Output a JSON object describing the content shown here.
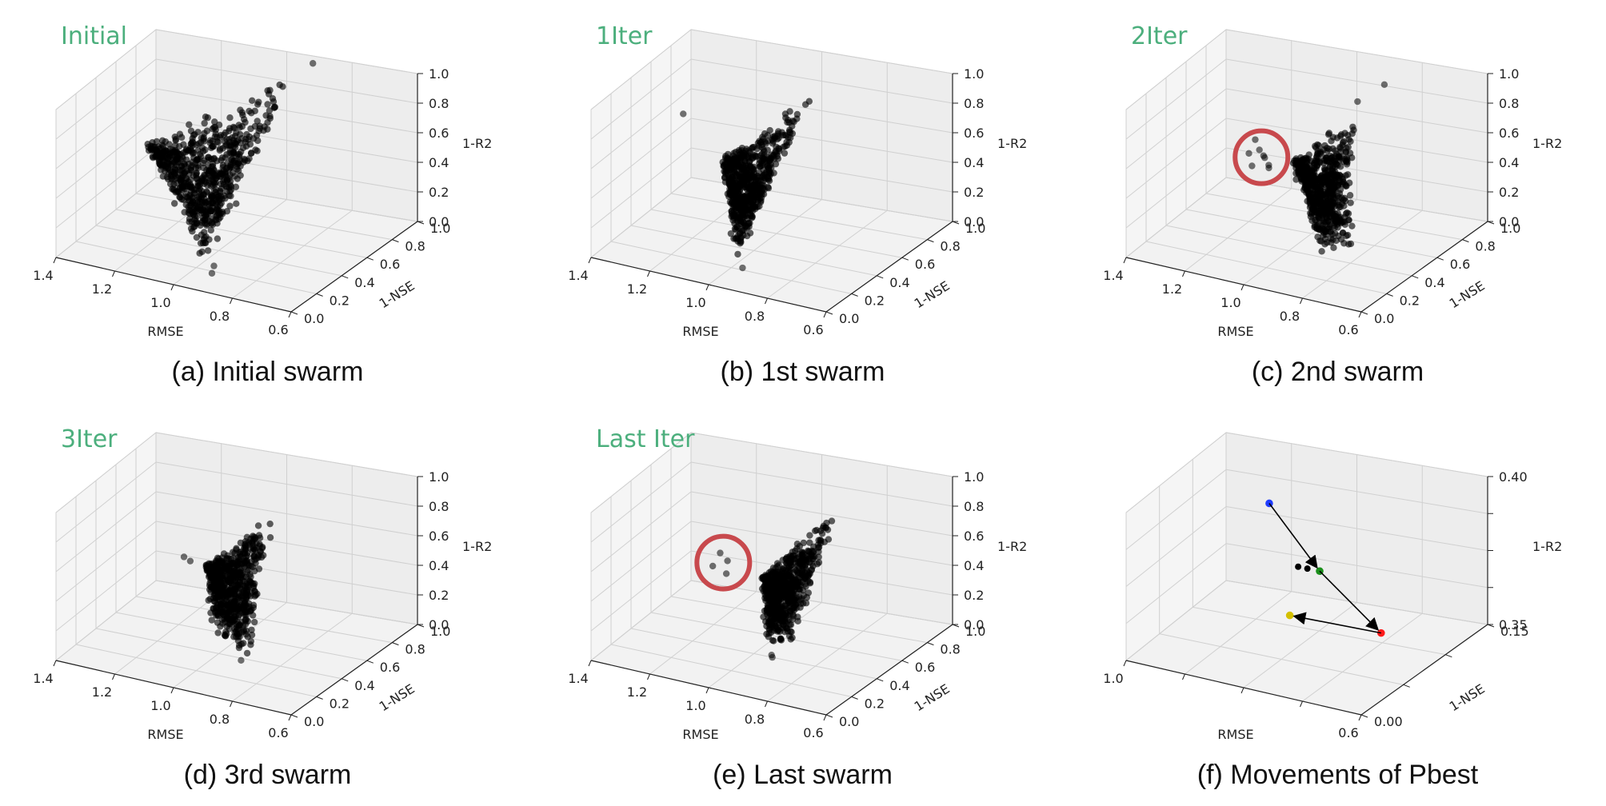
{
  "chart_data": [
    {
      "type": "scatter",
      "panel_label": "Initial",
      "caption": "(a) Initial swarm",
      "xlabel": "RMSE",
      "ylabel": "1-NSE",
      "zlabel": "1-R2",
      "xticks": [
        "1.4",
        "1.2",
        "1.0",
        "0.8",
        "0.6"
      ],
      "yticks": [
        "0.0",
        "0.2",
        "0.4",
        "0.6",
        "0.8",
        "1.0"
      ],
      "zticks": [
        "0.0",
        "0.2",
        "0.4",
        "0.6",
        "0.8",
        "1.0"
      ],
      "xlim": [
        0.6,
        1.4
      ],
      "ylim": [
        0.0,
        1.0
      ],
      "zlim": [
        0.0,
        1.0
      ],
      "grid": true,
      "cloud": {
        "apex": [
          1.3,
          0.6,
          0.47
        ],
        "vertices": [
          [
            0.96,
            1.0,
            0.9
          ],
          [
            0.97,
            0.2,
            0.0
          ],
          [
            1.08,
            0.5,
            0.12
          ]
        ],
        "count": 700
      },
      "points": [
        {
          "x": 0.92,
          "y": 1.0,
          "z": 0.95
        },
        {
          "x": 0.96,
          "y": 0.25,
          "z": 0.0
        },
        {
          "x": 0.94,
          "y": 0.18,
          "z": 0.0
        }
      ],
      "circle": null
    },
    {
      "type": "scatter",
      "panel_label": "1Iter",
      "caption": "(b) 1st swarm",
      "xlabel": "RMSE",
      "ylabel": "1-NSE",
      "zlabel": "1-R2",
      "xticks": [
        "1.4",
        "1.2",
        "1.0",
        "0.8",
        "0.6"
      ],
      "yticks": [
        "0.0",
        "0.2",
        "0.4",
        "0.6",
        "0.8",
        "1.0"
      ],
      "zticks": [
        "0.0",
        "0.2",
        "0.4",
        "0.6",
        "0.8",
        "1.0"
      ],
      "xlim": [
        0.6,
        1.4
      ],
      "ylim": [
        0.0,
        1.0
      ],
      "zlim": [
        0.0,
        1.0
      ],
      "grid": true,
      "cloud": {
        "apex": [
          1.17,
          0.6,
          0.44
        ],
        "vertices": [
          [
            0.98,
            0.85,
            0.8
          ],
          [
            0.99,
            0.2,
            0.02
          ],
          [
            1.06,
            0.45,
            0.1
          ]
        ],
        "count": 650
      },
      "points": [
        {
          "x": 1.33,
          "y": 0.7,
          "z": 0.62
        },
        {
          "x": 0.97,
          "y": 0.22,
          "z": 0.0
        }
      ],
      "circle": null
    },
    {
      "type": "scatter",
      "panel_label": "2Iter",
      "caption": "(c) 2nd swarm",
      "xlabel": "RMSE",
      "ylabel": "1-NSE",
      "zlabel": "1-R2",
      "xticks": [
        "1.4",
        "1.2",
        "1.0",
        "0.8",
        "0.6"
      ],
      "yticks": [
        "0.0",
        "0.2",
        "0.4",
        "0.6",
        "0.8",
        "1.0"
      ],
      "zticks": [
        "0.0",
        "0.2",
        "0.4",
        "0.6",
        "0.8",
        "1.0"
      ],
      "xlim": [
        0.6,
        1.4
      ],
      "ylim": [
        0.0,
        1.0
      ],
      "zlim": [
        0.0,
        1.0
      ],
      "grid": true,
      "cloud": {
        "apex": [
          1.08,
          0.66,
          0.42
        ],
        "vertices": [
          [
            0.95,
            0.85,
            0.72
          ],
          [
            0.84,
            0.52,
            0.0
          ],
          [
            0.9,
            0.38,
            0.05
          ]
        ],
        "count": 650
      },
      "points": [
        {
          "x": 1.2,
          "y": 0.66,
          "z": 0.52
        },
        {
          "x": 1.18,
          "y": 0.64,
          "z": 0.47
        },
        {
          "x": 1.16,
          "y": 0.62,
          "z": 0.45
        },
        {
          "x": 1.21,
          "y": 0.63,
          "z": 0.44
        },
        {
          "x": 1.17,
          "y": 0.66,
          "z": 0.41
        },
        {
          "x": 1.14,
          "y": 0.61,
          "z": 0.4
        },
        {
          "x": 1.19,
          "y": 0.6,
          "z": 0.38
        },
        {
          "x": 1.15,
          "y": 0.64,
          "z": 0.36
        },
        {
          "x": 0.88,
          "y": 0.9,
          "z": 0.88
        },
        {
          "x": 0.92,
          "y": 0.78,
          "z": 0.82
        }
      ],
      "circle": {
        "x": 1.17,
        "y": 0.63,
        "z": 0.43
      }
    },
    {
      "type": "scatter",
      "panel_label": "3Iter",
      "caption": "(d) 3rd swarm",
      "xlabel": "RMSE",
      "ylabel": "1-NSE",
      "zlabel": "1-R2",
      "xticks": [
        "1.4",
        "1.2",
        "1.0",
        "0.8",
        "0.6"
      ],
      "yticks": [
        "0.0",
        "0.2",
        "0.4",
        "0.6",
        "0.8",
        "1.0"
      ],
      "zticks": [
        "0.0",
        "0.2",
        "0.4",
        "0.6",
        "0.8",
        "1.0"
      ],
      "xlim": [
        0.6,
        1.4
      ],
      "ylim": [
        0.0,
        1.0
      ],
      "zlim": [
        0.0,
        1.0
      ],
      "grid": true,
      "cloud": {
        "apex": [
          1.12,
          0.62,
          0.42
        ],
        "vertices": [
          [
            0.98,
            0.85,
            0.72
          ],
          [
            0.9,
            0.4,
            0.02
          ],
          [
            1.05,
            0.48,
            0.08
          ]
        ],
        "count": 650
      },
      "points": [
        {
          "x": 1.19,
          "y": 0.62,
          "z": 0.45
        },
        {
          "x": 1.17,
          "y": 0.62,
          "z": 0.43
        },
        {
          "x": 0.92,
          "y": 0.38,
          "z": 0.0
        }
      ],
      "circle": null
    },
    {
      "type": "scatter",
      "panel_label": "Last Iter",
      "caption": "(e) Last swarm",
      "xlabel": "RMSE",
      "ylabel": "1-NSE",
      "zlabel": "1-R2",
      "xticks": [
        "1.4",
        "1.2",
        "1.0",
        "0.8",
        "0.6"
      ],
      "yticks": [
        "0.0",
        "0.2",
        "0.4",
        "0.6",
        "0.8",
        "1.0"
      ],
      "zticks": [
        "0.0",
        "0.2",
        "0.4",
        "0.6",
        "0.8",
        "1.0"
      ],
      "xlim": [
        0.6,
        1.4
      ],
      "ylim": [
        0.0,
        1.0
      ],
      "zlim": [
        0.0,
        1.0
      ],
      "grid": true,
      "cloud": {
        "apex": [
          1.05,
          0.62,
          0.38
        ],
        "vertices": [
          [
            0.9,
            0.88,
            0.78
          ],
          [
            0.92,
            0.52,
            0.02
          ],
          [
            0.98,
            0.42,
            0.06
          ]
        ],
        "count": 650
      },
      "points": [
        {
          "x": 1.2,
          "y": 0.66,
          "z": 0.45
        },
        {
          "x": 1.17,
          "y": 0.64,
          "z": 0.42
        },
        {
          "x": 1.21,
          "y": 0.62,
          "z": 0.38
        },
        {
          "x": 1.16,
          "y": 0.6,
          "z": 0.36
        },
        {
          "x": 0.95,
          "y": 0.42,
          "z": 0.0
        },
        {
          "x": 0.94,
          "y": 0.4,
          "z": 0.0
        }
      ],
      "circle": {
        "x": 1.18,
        "y": 0.63,
        "z": 0.41
      }
    },
    {
      "type": "scatter",
      "panel_label": "",
      "caption": "(f) Movements of Pbest",
      "xlabel": "RMSE",
      "ylabel": "1-NSE",
      "zlabel": "1-R2",
      "xticks": [
        "1.0",
        "",
        "",
        "",
        "0.6"
      ],
      "yticks": [
        "0.00",
        "",
        "",
        "0.15"
      ],
      "zticks": [
        "0.35",
        "",
        "",
        "",
        "0.40"
      ],
      "xlim": [
        0.6,
        1.0
      ],
      "ylim": [
        0.0,
        0.15
      ],
      "zlim": [
        0.35,
        0.41
      ],
      "grid": true,
      "cloud": null,
      "pbest": [
        {
          "color": "#1f3cff",
          "x": 0.85,
          "y": 0.075,
          "z": 0.405
        },
        {
          "color": "#1a8f1a",
          "x": 0.75,
          "y": 0.06,
          "z": 0.386
        },
        {
          "color": "#ff1a1a",
          "x": 0.65,
          "y": 0.06,
          "z": 0.366
        },
        {
          "color": "#d4c000",
          "x": 0.78,
          "y": 0.045,
          "z": 0.37
        }
      ],
      "cluster": [
        {
          "x": 0.77,
          "y": 0.06,
          "z": 0.386
        },
        {
          "x": 0.785,
          "y": 0.06,
          "z": 0.386
        }
      ],
      "points": [],
      "circle": null
    }
  ]
}
